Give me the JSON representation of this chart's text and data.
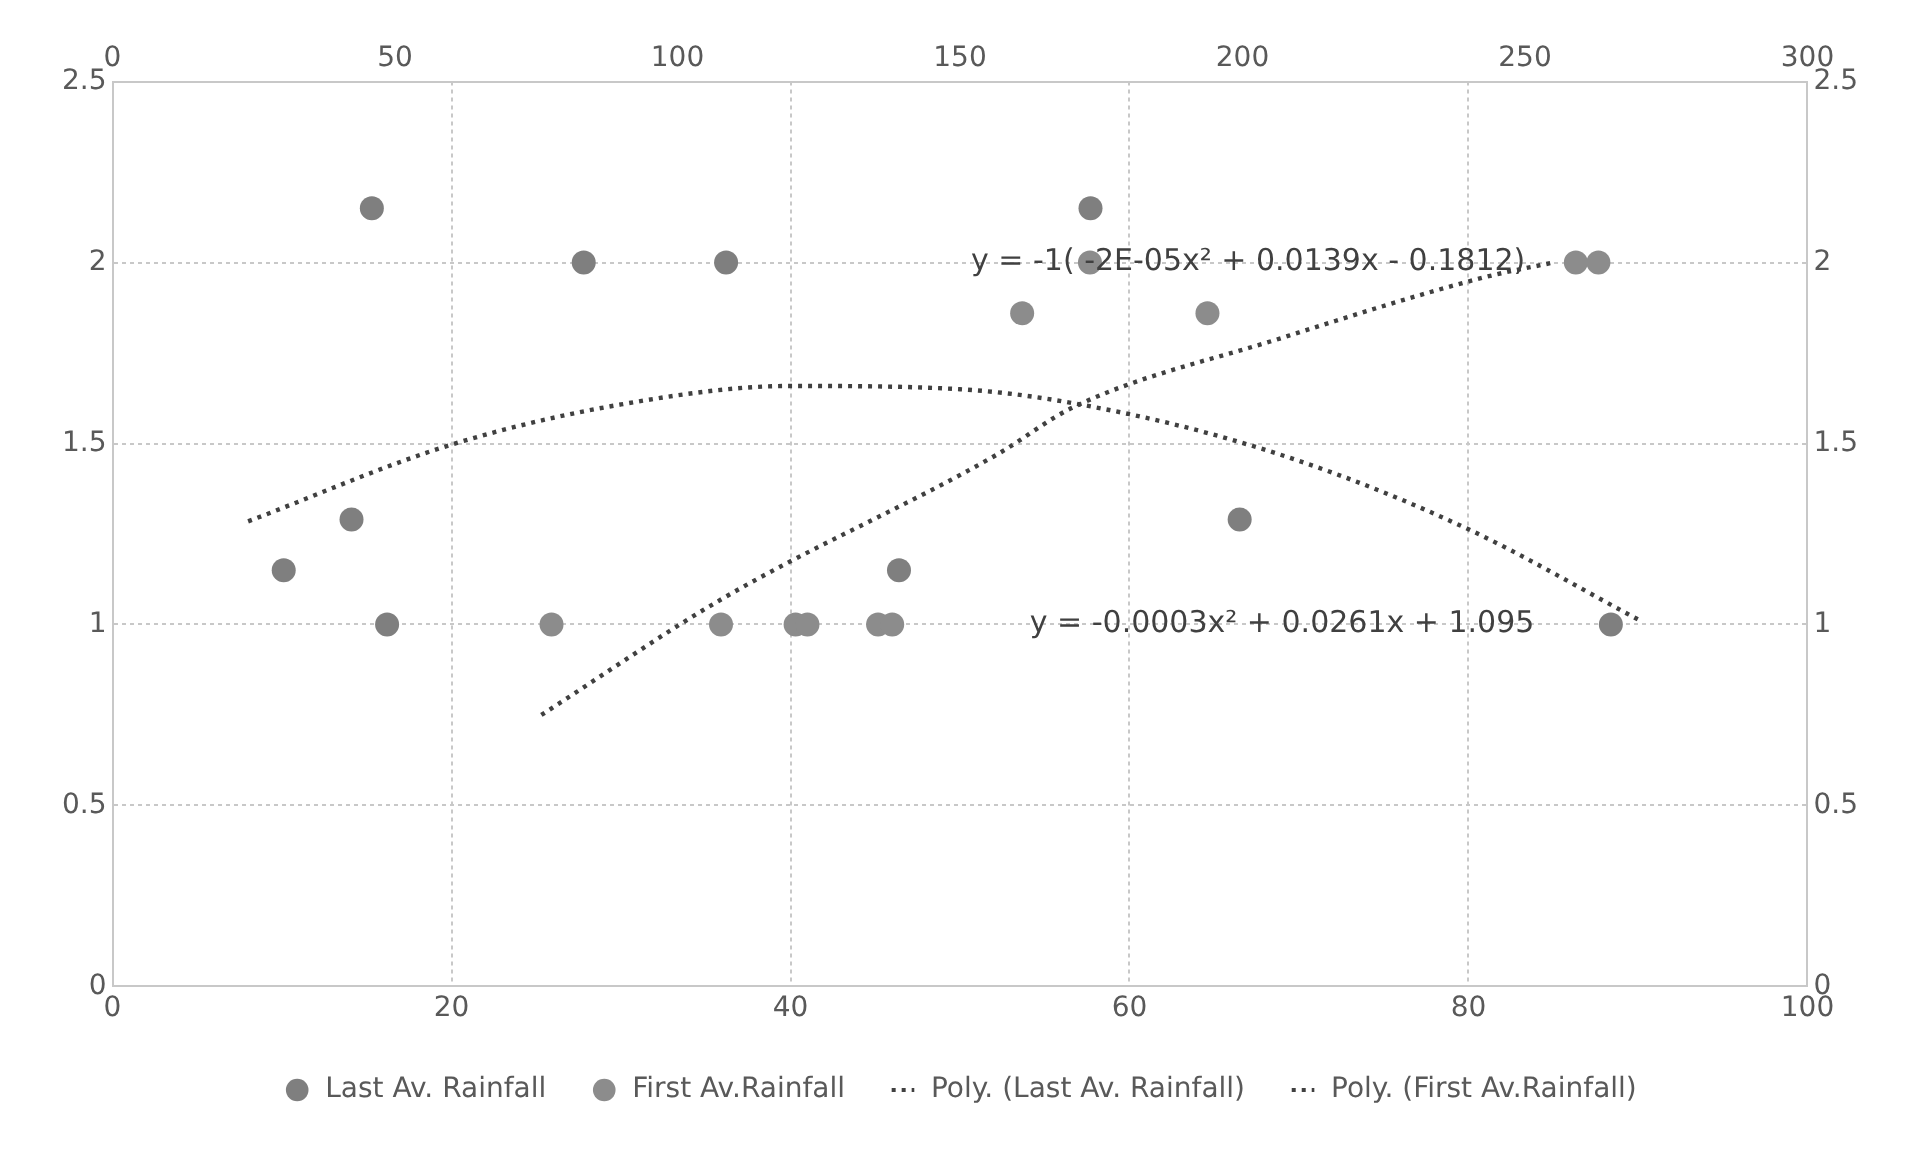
{
  "chart_data": {
    "type": "scatter",
    "xlim": [
      0,
      100
    ],
    "xticks": [
      0,
      20,
      40,
      60,
      80,
      100
    ],
    "x2lim": [
      0,
      300
    ],
    "x2ticks": [
      0,
      50,
      100,
      150,
      200,
      250,
      300
    ],
    "ylim": [
      0,
      2.5
    ],
    "yticks": [
      0,
      0.5,
      1,
      1.5,
      2,
      2.5
    ],
    "y2lim": [
      0,
      2.5
    ],
    "y2ticks": [
      0,
      0.5,
      1,
      1.5,
      2,
      2.5
    ],
    "grid": true,
    "legend": "bottom",
    "series": [
      {
        "name": "Last Av. Rainfall",
        "type": "scatter",
        "marker": "circle",
        "color": "#7f7f7f",
        "x": [
          10.1,
          14.1,
          15.3,
          16.2,
          27.8,
          36.2,
          46.4,
          57.7,
          66.5,
          88.4
        ],
        "values": [
          1.15,
          1.29,
          2.15,
          1,
          2,
          2,
          1.15,
          2.15,
          1.29,
          1
        ]
      },
      {
        "name": "First Av.Rainfall",
        "type": "scatter",
        "marker": "circle",
        "axis": "x2",
        "color": "#8c8c8c",
        "x": [
          77.7,
          107.7,
          120.9,
          123,
          135.5,
          138,
          161,
          173,
          193.8,
          259,
          263
        ],
        "values": [
          1,
          1,
          1,
          1,
          1,
          1,
          1.86,
          2,
          1.86,
          2,
          2
        ]
      },
      {
        "name": "Poly. (Last Av. Rainfall)",
        "type": "line",
        "marker": "none",
        "line_style": "dotted",
        "color": "#404040",
        "x": [
          8,
          20,
          30,
          40,
          50,
          60,
          70,
          80,
          90
        ],
        "values": [
          1.285,
          1.497,
          1.608,
          1.659,
          1.65,
          1.581,
          1.452,
          1.263,
          1.014
        ]
      },
      {
        "name": "Poly. (First Av.Rainfall)",
        "type": "line",
        "marker": "none",
        "line_style": "dotted",
        "axis": "x2",
        "color": "#404040",
        "x": [
          75.9,
          107.8,
          156.6,
          170,
          206.6,
          243,
          255
        ],
        "values": [
          0.75,
          1.07,
          1.47,
          1.6,
          1.79,
          1.96,
          2
        ]
      }
    ],
    "annotations": [
      "y = -1( -2E-05x² + 0.0139x - 0.1812)",
      "y = -0.0003x² + 0.0261x + 1.095"
    ]
  }
}
